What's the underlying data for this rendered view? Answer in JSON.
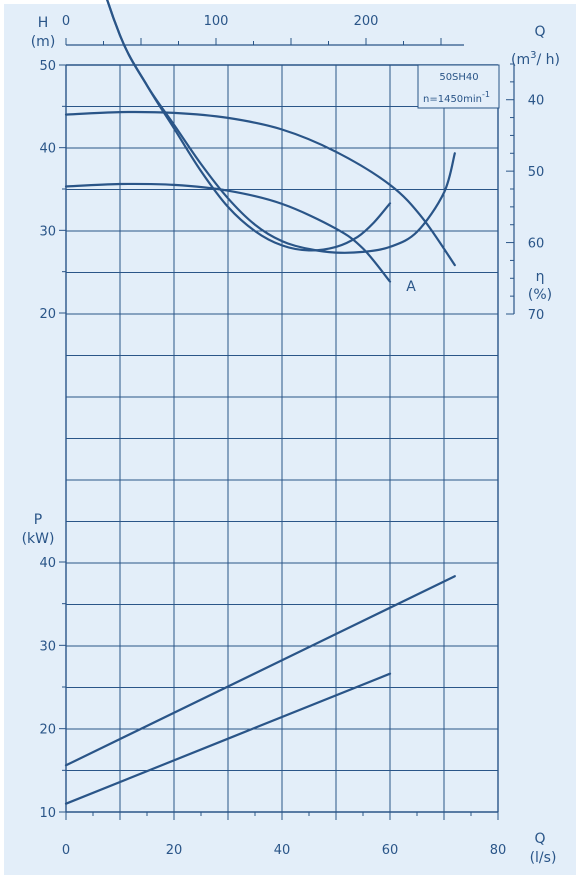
{
  "chart_data": {
    "type": "line",
    "model": "50SH40",
    "speed_label": "n=1450min",
    "speed_sup": "-1",
    "curve_label": "A",
    "axes": {
      "q_ls": {
        "label": "Q",
        "unit": "(l/s)",
        "range": [
          0,
          80
        ],
        "ticks": [
          "0",
          "20",
          "40",
          "60",
          "80"
        ]
      },
      "q_m3h": {
        "label": "Q",
        "unit_pre": "(m",
        "unit_sup": "3",
        "unit_post": "/ h)",
        "ticks": [
          "0",
          "100",
          "200"
        ],
        "tick_values": [
          0,
          100,
          200
        ]
      },
      "head": {
        "label": "H",
        "unit": "(m)",
        "range": [
          20,
          50
        ],
        "ticks": [
          "20",
          "30",
          "40",
          "50"
        ]
      },
      "efficiency": {
        "label": "η",
        "unit": "(%)",
        "range": [
          35,
          70
        ],
        "ticks": [
          "40",
          "50",
          "60",
          "70"
        ]
      },
      "power": {
        "label": "P",
        "unit": "(kW)",
        "range": [
          10,
          40
        ],
        "ticks": [
          "10",
          "20",
          "30",
          "40"
        ]
      }
    },
    "series": [
      {
        "kind": "head",
        "x": [
          0,
          10,
          20,
          30,
          40,
          50,
          60,
          66,
          72
        ],
        "y": [
          44,
          44.3,
          44.2,
          43.6,
          42.2,
          39.5,
          35.5,
          31.5,
          25.8
        ]
      },
      {
        "kind": "head",
        "x": [
          0,
          10,
          20,
          30,
          40,
          50,
          55,
          60
        ],
        "y": [
          35.3,
          35.6,
          35.5,
          34.8,
          33.2,
          30.2,
          27.8,
          23.8
        ]
      },
      {
        "kind": "efficiency",
        "x": [
          0,
          5,
          10,
          15,
          20,
          25,
          30,
          35,
          40,
          45,
          50,
          54,
          57,
          60
        ],
        "y": [
          0,
          19,
          31,
          38,
          44,
          50,
          55,
          58.4,
          60.4,
          61.1,
          60.6,
          59.2,
          57.2,
          54.5
        ]
      },
      {
        "kind": "efficiency",
        "x": [
          0,
          5,
          10,
          15,
          20,
          25,
          30,
          35,
          40,
          45,
          50,
          55,
          60,
          65,
          70,
          72
        ],
        "y": [
          0,
          19,
          31,
          38,
          43.5,
          49,
          53.8,
          57.5,
          59.8,
          60.9,
          61.4,
          61.3,
          60.6,
          58.5,
          53,
          47.5
        ]
      },
      {
        "kind": "power",
        "x": [
          0,
          72
        ],
        "y": [
          15.6,
          38.3
        ]
      },
      {
        "kind": "power",
        "x": [
          0,
          60
        ],
        "y": [
          11,
          26.6
        ]
      }
    ]
  }
}
